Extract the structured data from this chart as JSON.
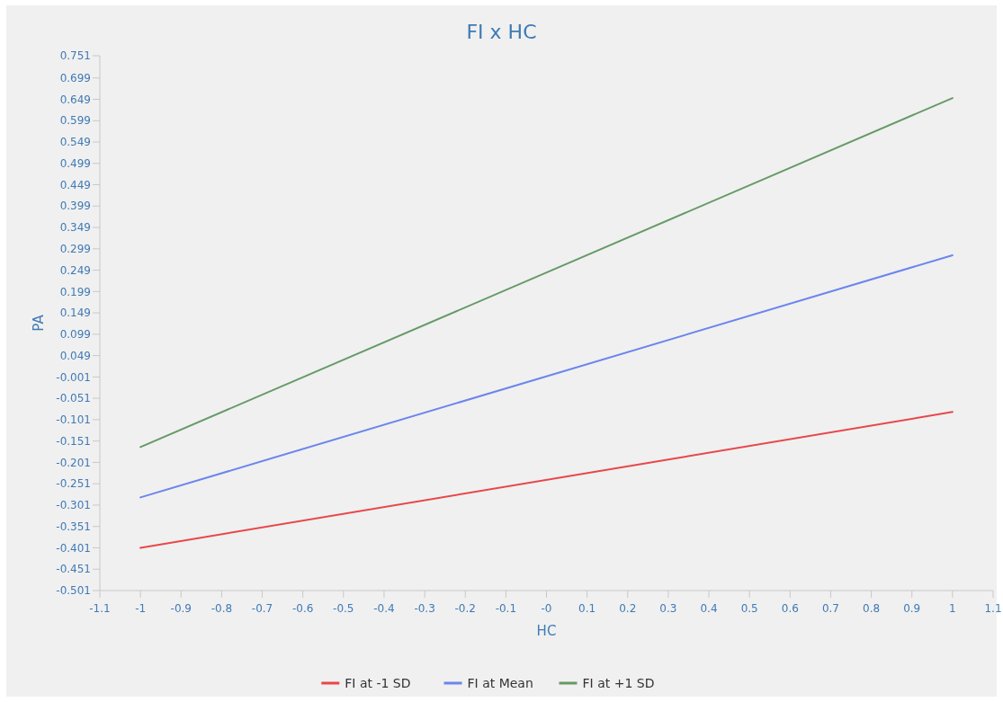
{
  "chart_data": {
    "type": "line",
    "title": "FI x HC",
    "xlabel": "HC",
    "ylabel": "PA",
    "x": [
      -1,
      1
    ],
    "series": [
      {
        "name": "FI at -1 SD",
        "color": "#e8474a",
        "values": [
          -0.401,
          -0.083
        ]
      },
      {
        "name": "FI at Mean",
        "color": "#6b85ee",
        "values": [
          -0.283,
          0.284
        ]
      },
      {
        "name": "FI at +1 SD",
        "color": "#659a66",
        "values": [
          -0.165,
          0.652
        ]
      }
    ],
    "xlim": [
      -1.1,
      1.1
    ],
    "xticks": [
      -1.1,
      -1,
      -0.9,
      -0.8,
      -0.7,
      -0.6,
      -0.5,
      -0.4,
      -0.3,
      -0.2,
      -0.1,
      {
        "value": 0,
        "label": "-0"
      },
      0.1,
      0.2,
      0.3,
      0.4,
      0.5,
      0.6,
      0.7,
      0.8,
      0.9,
      1,
      1.1
    ],
    "ylim": [
      -0.501,
      0.751
    ],
    "yticks": [
      -0.501,
      -0.451,
      -0.401,
      -0.351,
      -0.301,
      -0.251,
      -0.201,
      -0.151,
      -0.101,
      -0.051,
      -0.001,
      0.049,
      0.099,
      0.149,
      0.199,
      0.249,
      0.299,
      0.349,
      0.399,
      0.449,
      0.499,
      0.549,
      0.599,
      0.649,
      0.699,
      0.751
    ],
    "grid": false,
    "legend": "bottom",
    "marker": "none",
    "line_style": "solid"
  }
}
